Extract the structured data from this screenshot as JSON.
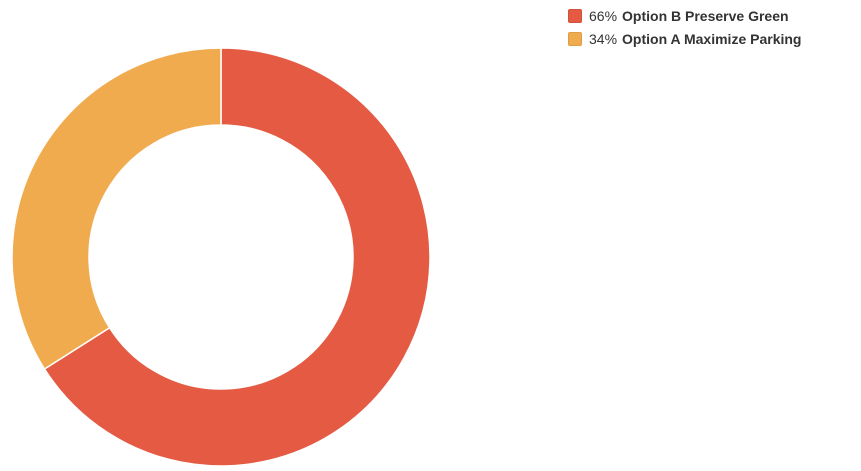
{
  "chart_data": {
    "type": "pie",
    "variant": "donut",
    "legend_position": "top-right",
    "slices": [
      {
        "label": "Option B Preserve Green",
        "percent_label": "66%",
        "value": 66,
        "color": "#E45A43"
      },
      {
        "label": "Option A Maximize Parking",
        "percent_label": "34%",
        "value": 34,
        "color": "#F0AB4E"
      }
    ]
  }
}
